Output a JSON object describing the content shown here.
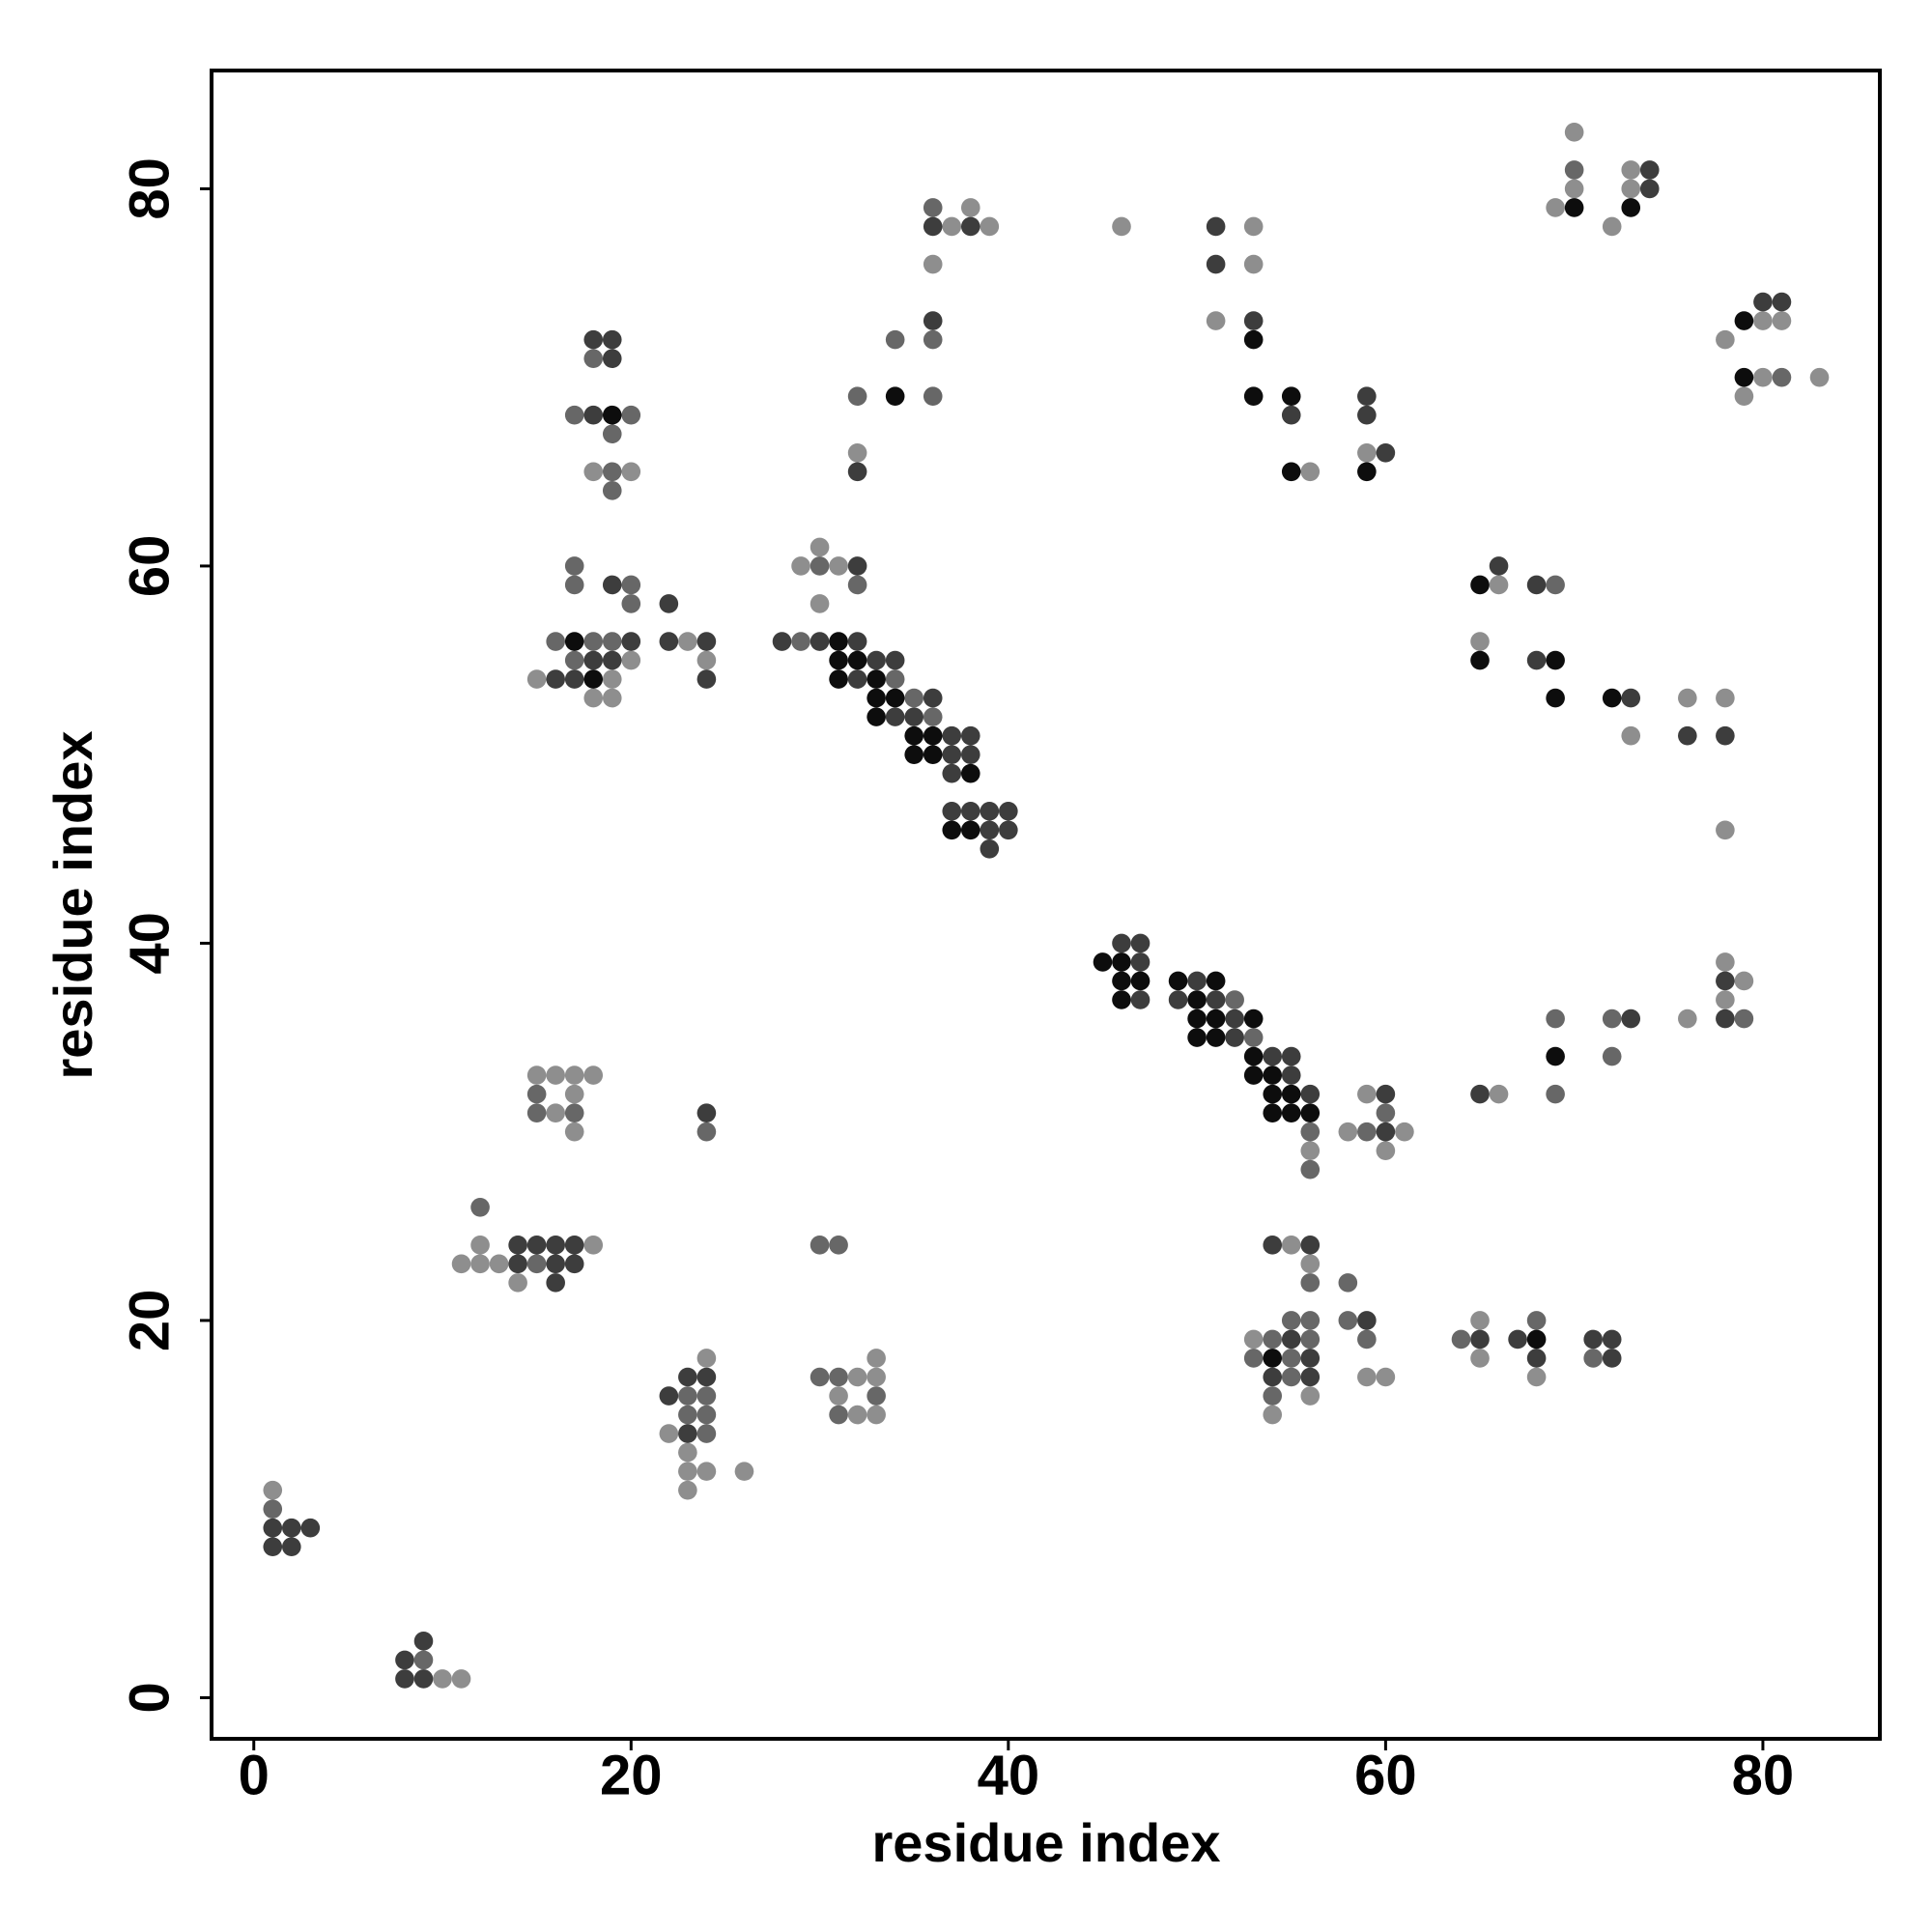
{
  "chart_data": {
    "type": "scatter",
    "xlabel": "residue index",
    "ylabel": "residue index",
    "xlim": [
      -2.24,
      86.2
    ],
    "ylim": [
      -2.18,
      86.27
    ],
    "xticks": [
      0,
      20,
      40,
      60,
      80
    ],
    "yticks": [
      0,
      20,
      40,
      60,
      80
    ],
    "grid": false,
    "series": [
      {
        "color": "#8e8e8e",
        "x": [
          1,
          10,
          11,
          12,
          18,
          11,
          12,
          13,
          14,
          15,
          16,
          17,
          18,
          17,
          16,
          17,
          24,
          22,
          23,
          23,
          24,
          26,
          23,
          33,
          32,
          33,
          31,
          32,
          33,
          20,
          15,
          19,
          18,
          19,
          23,
          24,
          18,
          20,
          30,
          29,
          31,
          30,
          32,
          38,
          37,
          39,
          36,
          46,
          56,
          58,
          59,
          61,
          60,
          55,
          56,
          53,
          56,
          54,
          59,
          60,
          65,
          65,
          68,
          66,
          76,
          78,
          79,
          78,
          66,
          65,
          73,
          76,
          78,
          78,
          53,
          53,
          51,
          56,
          59,
          70,
          70,
          69,
          72,
          73,
          73,
          80,
          81,
          78,
          80,
          83,
          79
        ],
        "y": [
          11,
          1,
          1,
          24,
          24,
          23,
          23,
          23,
          22,
          33,
          33,
          33,
          33,
          32,
          31,
          30,
          18,
          14,
          13,
          12,
          12,
          12,
          11,
          18,
          17,
          17,
          16,
          15,
          15,
          55,
          54,
          54,
          53,
          53,
          56,
          55,
          65,
          65,
          61,
          60,
          60,
          58,
          66,
          79,
          78,
          78,
          76,
          78,
          29,
          30,
          32,
          30,
          29,
          24,
          23,
          19,
          16,
          15,
          17,
          17,
          20,
          18,
          17,
          32,
          36,
          39,
          38,
          37,
          59,
          56,
          51,
          53,
          53,
          46,
          78,
          76,
          73,
          65,
          66,
          83,
          80,
          79,
          78,
          81,
          80,
          73,
          73,
          72,
          70,
          70,
          69
        ]
      },
      {
        "color": "#676767",
        "x": [
          1,
          9,
          12,
          15,
          15,
          15,
          17,
          24,
          23,
          24,
          23,
          24,
          24,
          30,
          31,
          30,
          31,
          33,
          31,
          17,
          17,
          20,
          20,
          16,
          18,
          19,
          17,
          18,
          17,
          20,
          19,
          19,
          19,
          29,
          34,
          35,
          36,
          30,
          32,
          32,
          34,
          36,
          36,
          36,
          52,
          53,
          56,
          56,
          60,
          59,
          56,
          55,
          56,
          54,
          56,
          53,
          55,
          55,
          54,
          58,
          58,
          59,
          64,
          68,
          71,
          69,
          69,
          72,
          72,
          79,
          69,
          70,
          81
        ],
        "y": [
          10,
          2,
          26,
          23,
          32,
          31,
          31,
          30,
          16,
          16,
          15,
          15,
          14,
          24,
          24,
          17,
          17,
          16,
          15,
          60,
          59,
          59,
          58,
          56,
          56,
          56,
          55,
          71,
          68,
          68,
          67,
          65,
          64,
          56,
          54,
          53,
          52,
          60,
          59,
          69,
          72,
          72,
          69,
          79,
          37,
          35,
          30,
          28,
          31,
          30,
          22,
          20,
          20,
          19,
          19,
          18,
          18,
          17,
          16,
          22,
          20,
          19,
          19,
          20,
          18,
          36,
          32,
          36,
          34,
          36,
          59,
          81,
          70
        ]
      },
      {
        "color": "#3d3d3d",
        "x": [
          1,
          2,
          3,
          1,
          2,
          9,
          8,
          8,
          9,
          14,
          15,
          16,
          17,
          14,
          16,
          17,
          16,
          24,
          23,
          24,
          22,
          23,
          19,
          20,
          18,
          19,
          16,
          17,
          22,
          22,
          24,
          24,
          18,
          19,
          19,
          18,
          28,
          30,
          32,
          33,
          34,
          32,
          36,
          34,
          35,
          37,
          38,
          37,
          38,
          37,
          37,
          38,
          39,
          40,
          39,
          40,
          39,
          32,
          32,
          36,
          36,
          38,
          46,
          47,
          47,
          47,
          50,
          49,
          51,
          52,
          52,
          54,
          55,
          55,
          56,
          60,
          60,
          54,
          56,
          55,
          56,
          54,
          56,
          59,
          65,
          67,
          68,
          71,
          72,
          72,
          65,
          73,
          78,
          78,
          66,
          68,
          68,
          73,
          76,
          78,
          51,
          51,
          53,
          55,
          59,
          59,
          60,
          74,
          74,
          80,
          81
        ],
        "y": [
          9,
          9,
          9,
          8,
          8,
          3,
          2,
          1,
          1,
          24,
          24,
          24,
          24,
          23,
          23,
          23,
          22,
          31,
          17,
          17,
          16,
          14,
          59,
          56,
          55,
          55,
          54,
          54,
          58,
          56,
          56,
          54,
          72,
          72,
          71,
          68,
          56,
          56,
          56,
          55,
          55,
          54,
          53,
          52,
          52,
          51,
          51,
          50,
          50,
          49,
          47,
          47,
          47,
          47,
          46,
          46,
          45,
          60,
          65,
          73,
          78,
          78,
          40,
          40,
          39,
          37,
          38,
          37,
          37,
          36,
          35,
          34,
          34,
          33,
          32,
          32,
          30,
          24,
          24,
          19,
          18,
          17,
          17,
          20,
          19,
          19,
          18,
          19,
          19,
          18,
          32,
          36,
          38,
          36,
          60,
          59,
          55,
          53,
          51,
          51,
          78,
          76,
          73,
          68,
          69,
          68,
          66,
          81,
          80,
          74,
          74
        ]
      },
      {
        "color": "#0d0d0d",
        "x": [
          31,
          17,
          18,
          19,
          31,
          32,
          31,
          33,
          33,
          34,
          33,
          35,
          36,
          35,
          36,
          38,
          37,
          38,
          34,
          45,
          46,
          46,
          47,
          46,
          49,
          51,
          50,
          50,
          51,
          53,
          50,
          51,
          53,
          53,
          54,
          54,
          55,
          54,
          55,
          56,
          54,
          68,
          69,
          65,
          65,
          69,
          69,
          72,
          53,
          53,
          55,
          55,
          59,
          70,
          73,
          79,
          79
        ],
        "y": [
          56,
          56,
          54,
          68,
          55,
          55,
          54,
          54,
          53,
          53,
          52,
          51,
          51,
          50,
          50,
          49,
          46,
          46,
          69,
          39,
          39,
          38,
          38,
          37,
          38,
          38,
          37,
          36,
          36,
          36,
          35,
          35,
          34,
          33,
          33,
          32,
          32,
          31,
          31,
          31,
          18,
          19,
          34,
          59,
          55,
          55,
          53,
          53,
          72,
          69,
          69,
          65,
          65,
          79,
          79,
          73,
          70
        ]
      }
    ]
  }
}
